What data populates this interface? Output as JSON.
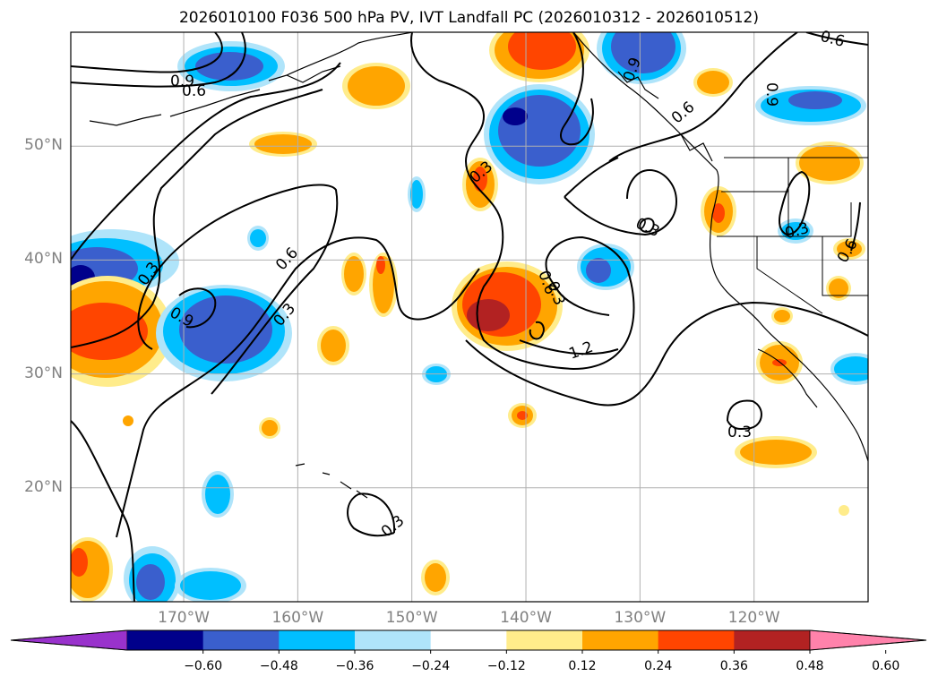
{
  "title": "2026010100 F036 500 hPa PV, IVT Landfall PC (2026010312 - 2026010512)",
  "map": {
    "lat_labels": [
      {
        "value": 50,
        "text": "50°N"
      },
      {
        "value": 40,
        "text": "40°N"
      },
      {
        "value": 30,
        "text": "30°N"
      },
      {
        "value": 20,
        "text": "20°N"
      }
    ],
    "lon_labels": [
      {
        "value": -170,
        "text": "170°W"
      },
      {
        "value": -160,
        "text": "160°W"
      },
      {
        "value": -150,
        "text": "150°W"
      },
      {
        "value": -140,
        "text": "140°W"
      },
      {
        "value": -130,
        "text": "130°W"
      },
      {
        "value": -120,
        "text": "120°W"
      }
    ],
    "contour_labels": [
      "0.9",
      "0.6",
      "0.3",
      "0.6",
      "0.3",
      "0.9",
      "0.3",
      "0.6",
      "0.3",
      "1.2",
      "0.3",
      "0.3",
      "0.3",
      "0.6",
      "0.9",
      "0.6",
      "0.9",
      "0.6",
      "0.3"
    ]
  },
  "colorbar": {
    "ticks": [
      "−0.60",
      "−0.48",
      "−0.36",
      "−0.24",
      "−0.12",
      "0.12",
      "0.24",
      "0.36",
      "0.48",
      "0.60"
    ],
    "colors": [
      "#9932cc",
      "#00008b",
      "#3a5fcd",
      "#00bfff",
      "#afe4fa",
      "#ffffff",
      "#ffec8b",
      "#ffa500",
      "#ff4500",
      "#b22222",
      "#ff82ab"
    ]
  }
}
